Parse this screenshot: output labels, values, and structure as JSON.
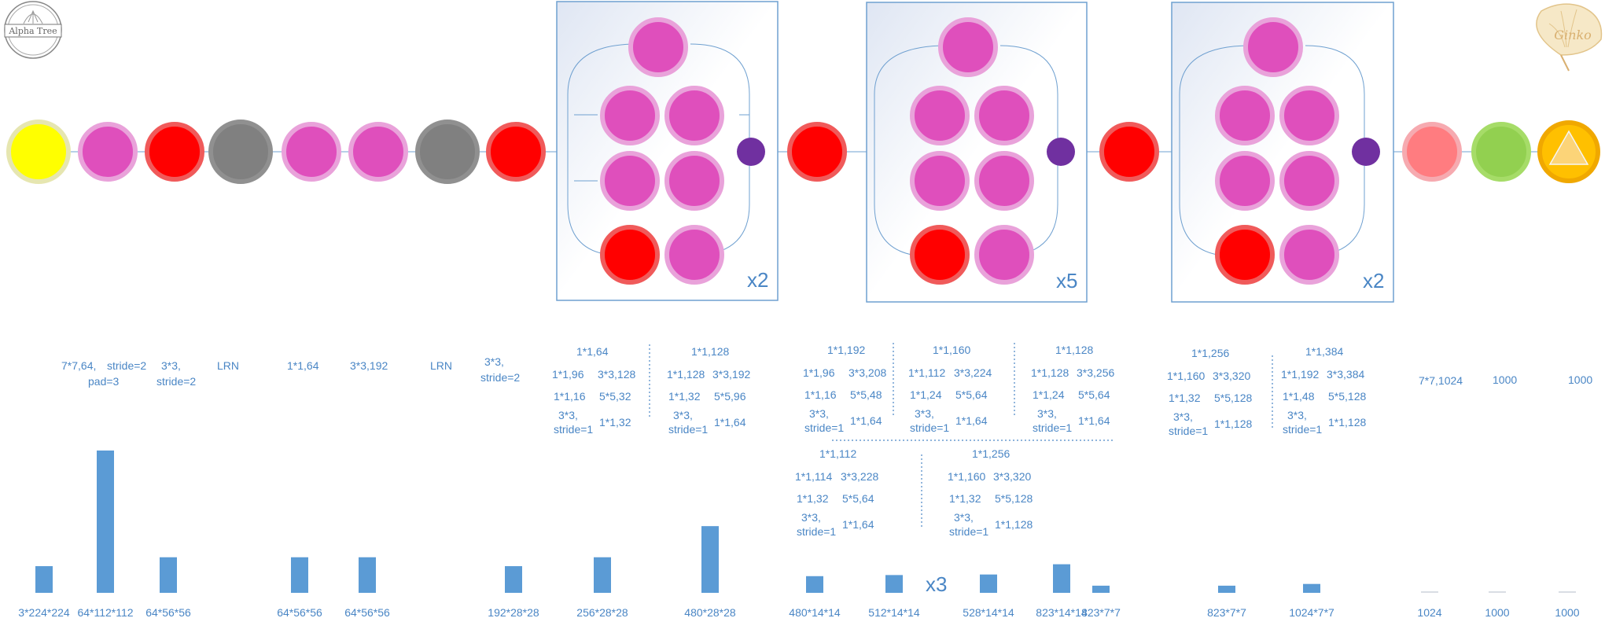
{
  "logo": {
    "text": "Alpha Tree"
  },
  "brand": {
    "text": "Ginko"
  },
  "repeats": [
    "x2",
    "x5",
    "x2",
    "x3"
  ],
  "annotations": {
    "conv1": [
      "7*7,64,",
      "stride=2",
      "pad=3"
    ],
    "pool1": [
      "3*3,",
      "stride=2"
    ],
    "lrn1": "LRN",
    "conv2_reduce": "1*1,64",
    "conv2": "3*3,192",
    "lrn2": "LRN",
    "pool2": [
      "3*3,",
      "stride=2"
    ],
    "inc3a": [
      "1*1,64",
      "1*1,96",
      "3*3,128",
      "1*1,16",
      "5*5,32",
      "3*3,",
      "stride=1",
      "1*1,32"
    ],
    "inc3b": [
      "1*1,128",
      "1*1,128",
      "3*3,192",
      "1*1,32",
      "5*5,96",
      "3*3,",
      "stride=1",
      "1*1,64"
    ],
    "inc4a": [
      "1*1,192",
      "1*1,96",
      "3*3,208",
      "1*1,16",
      "5*5,48",
      "3*3,",
      "stride=1",
      "1*1,64"
    ],
    "inc4b": [
      "1*1,160",
      "1*1,112",
      "3*3,224",
      "1*1,24",
      "5*5,64",
      "3*3,",
      "stride=1",
      "1*1,64"
    ],
    "inc4c": [
      "1*1,128",
      "1*1,128",
      "3*3,256",
      "1*1,24",
      "5*5,64",
      "3*3,",
      "stride=1",
      "1*1,64"
    ],
    "inc4d": [
      "1*1,112",
      "1*1,114",
      "3*3,228",
      "1*1,32",
      "5*5,64",
      "3*3,",
      "stride=1",
      "1*1,64"
    ],
    "inc4e": [
      "1*1,256",
      "1*1,160",
      "3*3,320",
      "1*1,32",
      "5*5,128",
      "3*3,",
      "stride=1",
      "1*1,128"
    ],
    "inc5a": [
      "1*1,256",
      "1*1,160",
      "3*3,320",
      "1*1,32",
      "5*5,128",
      "3*3,",
      "stride=1",
      "1*1,128"
    ],
    "inc5b": [
      "1*1,384",
      "1*1,192",
      "3*3,384",
      "1*1,48",
      "5*5,128",
      "3*3,",
      "stride=1",
      "1*1,128"
    ],
    "avgpool": "7*7,1024",
    "fc": "1000",
    "softmax": "1000"
  },
  "chart_data": {
    "type": "bar",
    "categories": [
      "3*224*224",
      "64*112*112",
      "64*56*56",
      "64*56*56",
      "64*56*56",
      "192*28*28",
      "256*28*28",
      "480*28*28",
      "480*14*14",
      "512*14*14",
      "528*14*14",
      "823*14*14",
      "823*7*7",
      "823*7*7",
      "1024*7*7",
      "1024",
      "1000",
      "1000"
    ],
    "values": [
      150528,
      802816,
      200704,
      200704,
      200704,
      150528,
      200704,
      376320,
      94080,
      100352,
      103488,
      161308,
      40327,
      40327,
      50176,
      1024,
      1000,
      1000
    ],
    "scale_note": "",
    "title": "",
    "xlabel": "",
    "ylabel": ""
  }
}
